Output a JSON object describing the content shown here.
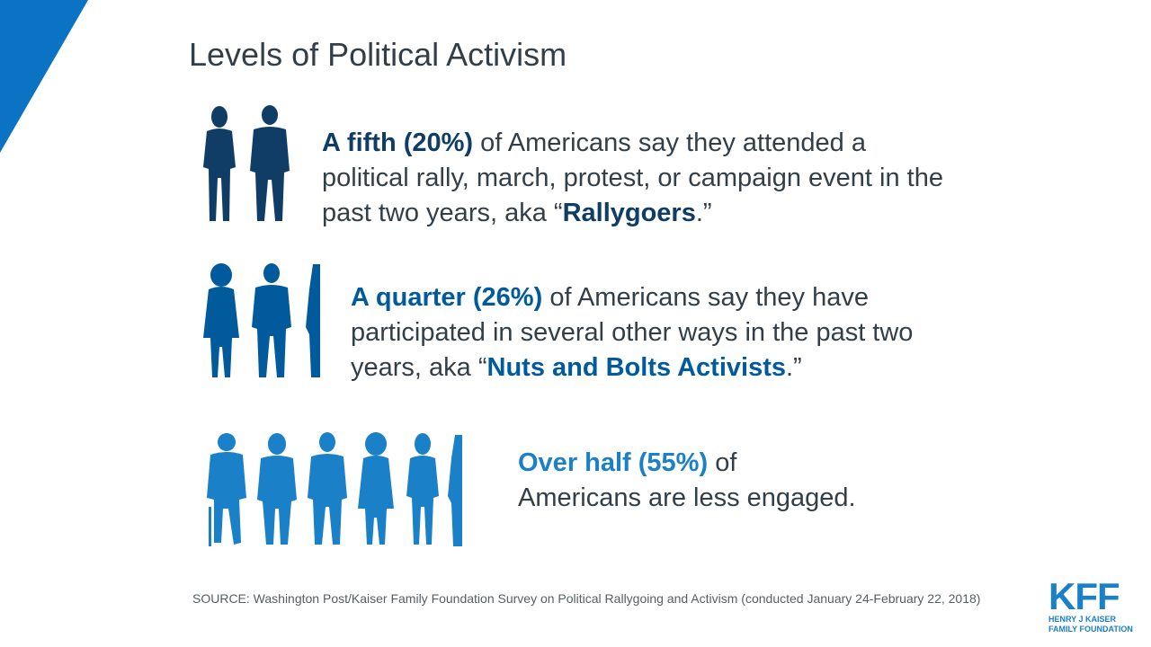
{
  "title": "Levels of Political Activism",
  "rows": [
    {
      "lead": "A fifth (20%)",
      "middle": " of Americans say they attended a political rally, march, protest, or campaign event in the past two years, aka “",
      "term": "Rallygoers",
      "end": ".”",
      "color": "#0f3d66"
    },
    {
      "lead": "A quarter (26%)",
      "middle": " of Americans say they have participated in several other ways in the past two years, aka “",
      "term": "Nuts and Bolts Activists",
      "end": ".”",
      "color": "#005a9c"
    },
    {
      "lead": "Over half (55%)",
      "middle": " of",
      "rest": "Americans are less engaged.",
      "color": "#1a80c8"
    }
  ],
  "source": "SOURCE: Washington Post/Kaiser Family Foundation Survey on Political Rallygoing and Activism (conducted January 24-February 22, 2018)",
  "logo": {
    "mark": "KFF",
    "line1": "HENRY J KAISER",
    "line2": "FAMILY FOUNDATION"
  },
  "icons": [
    "person-silhouette-icon"
  ]
}
